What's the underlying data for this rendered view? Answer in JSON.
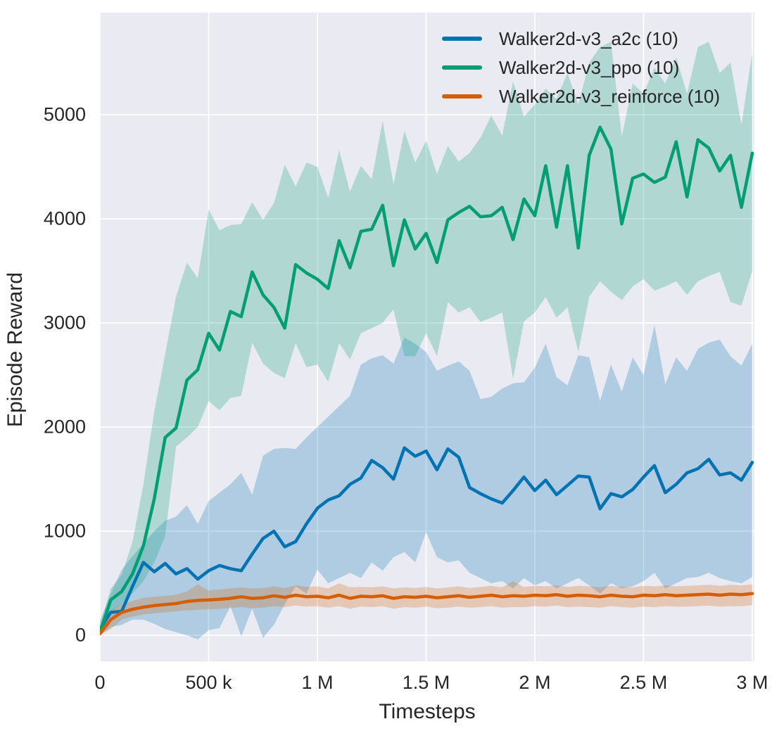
{
  "figure": {
    "plot_background": "#eaeaf2",
    "grid_color": "#ffffff",
    "text_color": "#262626",
    "band_alpha": 0.25
  },
  "chart_data": {
    "type": "line",
    "xlabel": "Timesteps",
    "ylabel": "Episode Reward",
    "grid": true,
    "legend_position": "upper right",
    "xlim": [
      0,
      3010000
    ],
    "ylim": [
      -250,
      5980
    ],
    "x_ticks": [
      {
        "value": 0,
        "label": "0"
      },
      {
        "value": 500000,
        "label": "500 k"
      },
      {
        "value": 1000000,
        "label": "1 M"
      },
      {
        "value": 1500000,
        "label": "1.5 M"
      },
      {
        "value": 2000000,
        "label": "2 M"
      },
      {
        "value": 2500000,
        "label": "2.5 M"
      },
      {
        "value": 3000000,
        "label": "3 M"
      }
    ],
    "y_ticks": [
      {
        "value": 0,
        "label": "0"
      },
      {
        "value": 1000,
        "label": "1000"
      },
      {
        "value": 2000,
        "label": "2000"
      },
      {
        "value": 3000,
        "label": "3000"
      },
      {
        "value": 4000,
        "label": "4000"
      },
      {
        "value": 5000,
        "label": "5000"
      }
    ],
    "x": [
      0,
      50000,
      100000,
      150000,
      200000,
      250000,
      300000,
      350000,
      400000,
      450000,
      500000,
      550000,
      600000,
      650000,
      700000,
      750000,
      800000,
      850000,
      900000,
      950000,
      1000000,
      1050000,
      1100000,
      1150000,
      1200000,
      1250000,
      1300000,
      1350000,
      1400000,
      1450000,
      1500000,
      1550000,
      1600000,
      1650000,
      1700000,
      1750000,
      1800000,
      1850000,
      1900000,
      1950000,
      2000000,
      2050000,
      2100000,
      2150000,
      2200000,
      2250000,
      2300000,
      2350000,
      2400000,
      2450000,
      2500000,
      2550000,
      2600000,
      2650000,
      2700000,
      2750000,
      2800000,
      2850000,
      2900000,
      2950000,
      3000000
    ],
    "series": [
      {
        "key": "a2c",
        "name": "Walker2d-v3_a2c (10)",
        "color": "#0173b2",
        "mean": [
          60,
          220,
          230,
          470,
          700,
          610,
          690,
          590,
          640,
          540,
          620,
          670,
          640,
          620,
          780,
          930,
          1000,
          850,
          900,
          1070,
          1220,
          1300,
          1340,
          1450,
          1510,
          1680,
          1610,
          1500,
          1800,
          1720,
          1770,
          1590,
          1790,
          1710,
          1420,
          1360,
          1310,
          1270,
          1390,
          1520,
          1390,
          1490,
          1350,
          1440,
          1530,
          1520,
          1215,
          1360,
          1330,
          1400,
          1520,
          1630,
          1370,
          1450,
          1560,
          1600,
          1690,
          1540,
          1560,
          1490,
          1660
        ],
        "band_low": [
          0,
          80,
          100,
          150,
          150,
          110,
          60,
          30,
          0,
          -40,
          50,
          70,
          280,
          -10,
          255,
          -25,
          100,
          300,
          470,
          400,
          630,
          500,
          550,
          600,
          550,
          700,
          620,
          750,
          800,
          700,
          990,
          750,
          700,
          720,
          600,
          550,
          500,
          520,
          450,
          550,
          480,
          520,
          450,
          500,
          550,
          480,
          400,
          500,
          450,
          470,
          520,
          600,
          450,
          500,
          550,
          560,
          600,
          550,
          520,
          500,
          560
        ],
        "band_high": [
          140,
          400,
          630,
          760,
          880,
          1000,
          1100,
          1140,
          1250,
          1070,
          1290,
          1370,
          1450,
          1560,
          1350,
          1725,
          1790,
          1800,
          1790,
          1900,
          2000,
          2100,
          2200,
          2300,
          2600,
          2660,
          2690,
          2610,
          2860,
          2800,
          2720,
          2540,
          2590,
          2630,
          2540,
          2270,
          2290,
          2370,
          2420,
          2430,
          2570,
          2800,
          2480,
          2400,
          2690,
          2670,
          2250,
          2600,
          2340,
          2670,
          2500,
          2980,
          2410,
          2670,
          2540,
          2750,
          2810,
          2840,
          2680,
          2590,
          2800
        ]
      },
      {
        "key": "ppo",
        "name": "Walker2d-v3_ppo (10)",
        "color": "#029e73",
        "mean": [
          30,
          340,
          420,
          590,
          860,
          1310,
          1900,
          1990,
          2450,
          2550,
          2900,
          2740,
          3110,
          3060,
          3490,
          3270,
          3150,
          2950,
          3560,
          3480,
          3420,
          3330,
          3790,
          3530,
          3880,
          3900,
          4130,
          3550,
          3990,
          3710,
          3860,
          3580,
          3990,
          4060,
          4120,
          4020,
          4030,
          4110,
          3800,
          4190,
          4030,
          4510,
          3920,
          4510,
          3720,
          4610,
          4880,
          4670,
          3950,
          4390,
          4430,
          4350,
          4400,
          4740,
          4210,
          4760,
          4680,
          4460,
          4610,
          4110,
          4630
        ],
        "band_low": [
          0,
          230,
          300,
          400,
          520,
          700,
          950,
          1810,
          1900,
          2000,
          2250,
          2160,
          2280,
          2300,
          2810,
          2610,
          2520,
          2470,
          2805,
          2575,
          2600,
          2435,
          2805,
          2650,
          2900,
          2950,
          3000,
          3130,
          2680,
          2680,
          2900,
          2680,
          3200,
          3100,
          3150,
          3010,
          3050,
          3100,
          2465,
          3015,
          3100,
          3250,
          3050,
          3150,
          2720,
          3250,
          3400,
          3300,
          3220,
          3350,
          3420,
          3310,
          3350,
          3400,
          3270,
          3400,
          3450,
          3490,
          3200,
          3165,
          3500
        ],
        "band_high": [
          90,
          450,
          580,
          900,
          1450,
          2150,
          2700,
          3250,
          3580,
          3430,
          4090,
          3890,
          3940,
          3950,
          4160,
          3990,
          4150,
          4520,
          4310,
          4540,
          4500,
          4200,
          4660,
          4260,
          4510,
          4380,
          4940,
          4330,
          4845,
          4540,
          4750,
          4430,
          4700,
          4550,
          4630,
          4780,
          4990,
          4800,
          5320,
          4980,
          5100,
          5250,
          5150,
          5400,
          5100,
          5500,
          5650,
          5700,
          4790,
          5300,
          5200,
          5450,
          5300,
          5550,
          5200,
          5650,
          5700,
          5400,
          5500,
          4900,
          5600
        ]
      },
      {
        "key": "reinforce",
        "name": "Walker2d-v3_reinforce (10)",
        "color": "#d55e00",
        "mean": [
          15,
          150,
          220,
          250,
          270,
          285,
          295,
          305,
          325,
          335,
          340,
          345,
          355,
          370,
          355,
          360,
          380,
          365,
          385,
          370,
          375,
          360,
          385,
          355,
          375,
          370,
          380,
          355,
          370,
          365,
          375,
          360,
          370,
          380,
          365,
          375,
          385,
          370,
          380,
          375,
          385,
          380,
          390,
          375,
          385,
          380,
          370,
          385,
          375,
          370,
          385,
          380,
          390,
          380,
          385,
          390,
          395,
          385,
          395,
          390,
          400
        ],
        "band_low": [
          0,
          60,
          150,
          180,
          200,
          210,
          220,
          230,
          240,
          245,
          250,
          255,
          260,
          270,
          260,
          265,
          280,
          270,
          285,
          275,
          280,
          265,
          280,
          255,
          275,
          270,
          280,
          255,
          270,
          265,
          275,
          260,
          265,
          275,
          265,
          270,
          280,
          265,
          270,
          270,
          280,
          275,
          285,
          270,
          275,
          270,
          265,
          280,
          270,
          265,
          275,
          270,
          280,
          275,
          275,
          280,
          285,
          275,
          280,
          280,
          290
        ],
        "band_high": [
          45,
          240,
          300,
          330,
          360,
          370,
          380,
          390,
          420,
          490,
          430,
          440,
          450,
          460,
          450,
          455,
          470,
          455,
          480,
          465,
          470,
          450,
          500,
          460,
          465,
          460,
          470,
          450,
          460,
          455,
          465,
          450,
          460,
          470,
          455,
          465,
          475,
          460,
          520,
          465,
          475,
          470,
          480,
          465,
          475,
          470,
          460,
          475,
          465,
          460,
          475,
          470,
          480,
          470,
          475,
          480,
          485,
          475,
          485,
          480,
          490
        ]
      }
    ]
  }
}
